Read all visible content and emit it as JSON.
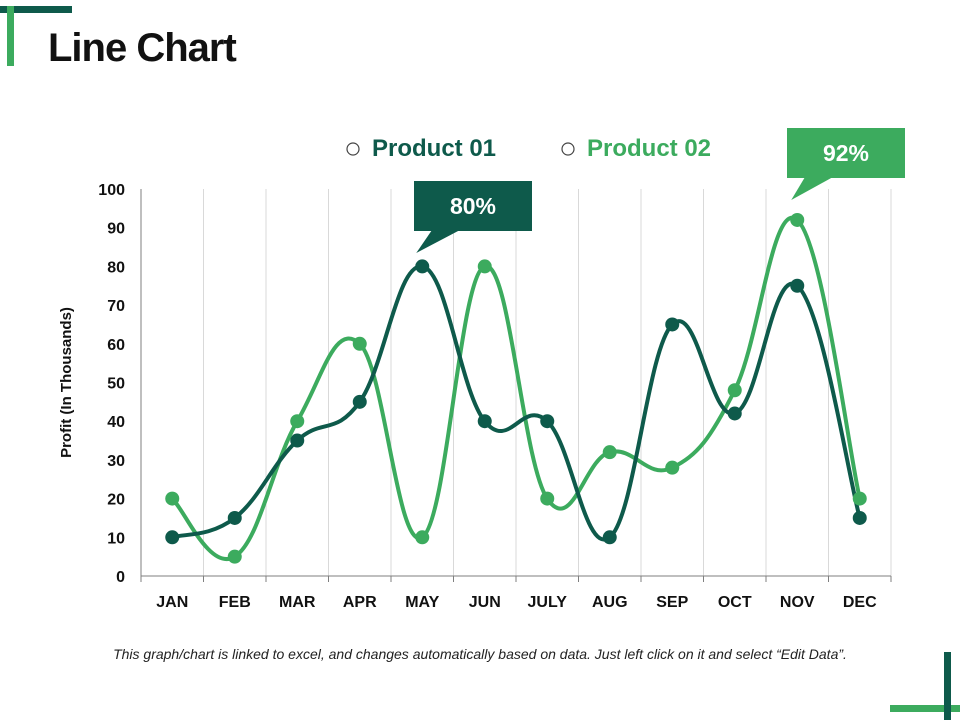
{
  "slide": {
    "title": "Line Chart",
    "footnote": "This graph/chart is linked to excel, and changes automatically based on data. Just left click on it and select “Edit Data”."
  },
  "colors": {
    "dark_green": "#0e5a4b",
    "light_green": "#3cab5e",
    "grid": "#d9d9d9",
    "axis": "#7f7f7f"
  },
  "chart_data": {
    "type": "line",
    "title": "",
    "xlabel": "",
    "ylabel": "Profit (In Thousands)",
    "ylim": [
      0,
      100
    ],
    "yticks": [
      0,
      10,
      20,
      30,
      40,
      50,
      60,
      70,
      80,
      90,
      100
    ],
    "categories": [
      "JAN",
      "FEB",
      "MAR",
      "APR",
      "MAY",
      "JUN",
      "JULY",
      "AUG",
      "SEP",
      "OCT",
      "NOV",
      "DEC"
    ],
    "legend_position": "top",
    "series": [
      {
        "name": "Product 01",
        "color": "#0e5a4b",
        "values": [
          10,
          15,
          35,
          45,
          80,
          40,
          40,
          10,
          65,
          42,
          75,
          15
        ]
      },
      {
        "name": "Product 02",
        "color": "#3cab5e",
        "values": [
          20,
          5,
          40,
          60,
          10,
          80,
          20,
          32,
          28,
          48,
          92,
          20
        ]
      }
    ],
    "callouts": [
      {
        "text": "80%",
        "series": 0,
        "category": "MAY",
        "color": "#0e5a4b"
      },
      {
        "text": "92%",
        "series": 1,
        "category": "NOV",
        "color": "#3cab5e"
      }
    ]
  }
}
